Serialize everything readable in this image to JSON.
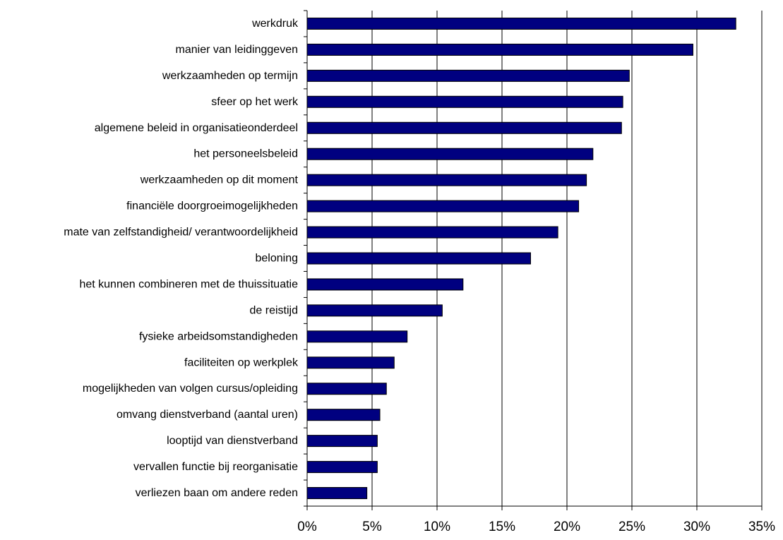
{
  "chart_data": {
    "type": "bar",
    "orientation": "horizontal",
    "categories": [
      "werkdruk",
      "manier van leidinggeven",
      "werkzaamheden op termijn",
      "sfeer op het werk",
      "algemene beleid in organisatieonderdeel",
      "het personeelsbeleid",
      "werkzaamheden op dit moment",
      "financiële doorgroeimogelijkheden",
      "mate van zelfstandigheid/ verantwoordelijkheid",
      "beloning",
      "het kunnen combineren met de thuissituatie",
      "de reistijd",
      "fysieke arbeidsomstandigheden",
      "faciliteiten op werkplek",
      "mogelijkheden van volgen cursus/opleiding",
      "omvang dienstverband (aantal uren)",
      "looptijd van dienstverband",
      "vervallen functie bij reorganisatie",
      "verliezen baan om andere reden"
    ],
    "values": [
      33.0,
      29.7,
      24.8,
      24.3,
      24.2,
      22.0,
      21.5,
      20.9,
      19.3,
      17.2,
      12.0,
      10.4,
      7.7,
      6.7,
      6.1,
      5.6,
      5.4,
      5.4,
      4.6
    ],
    "xlim": [
      0,
      35
    ],
    "xticks": [
      0,
      5,
      10,
      15,
      20,
      25,
      30,
      35
    ],
    "xtick_labels": [
      "0%",
      "5%",
      "10%",
      "15%",
      "20%",
      "25%",
      "30%",
      "35%"
    ],
    "title": "",
    "xlabel": "",
    "ylabel": "",
    "grid": "vertical",
    "legend": "none",
    "bar_color": "#000080",
    "bar_outline": "#000000",
    "grid_color": "#000000"
  }
}
